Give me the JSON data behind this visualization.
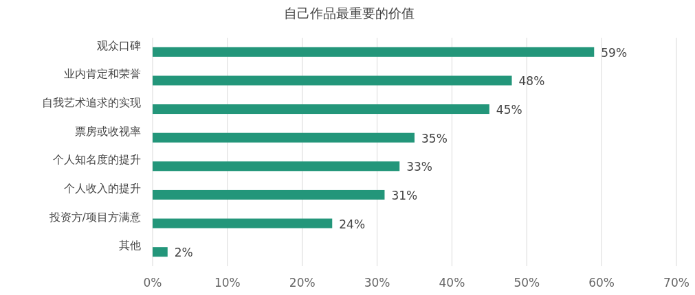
{
  "chart_data": {
    "type": "bar",
    "orientation": "horizontal",
    "title": "自己作品最重要的价值",
    "categories": [
      "观众口碑",
      "业内肯定和荣誉",
      "自我艺术追求的实现",
      "票房或收视率",
      "个人知名度的提升",
      "个人收入的提升",
      "投资方/项目方满意",
      "其他"
    ],
    "values": [
      59,
      48,
      45,
      35,
      33,
      31,
      24,
      2
    ],
    "value_labels": [
      "59%",
      "48%",
      "45%",
      "35%",
      "33%",
      "31%",
      "24%",
      "2%"
    ],
    "color": "#23967a",
    "xlim": [
      0,
      70
    ],
    "xticks": [
      {
        "value": 0,
        "label": "0%"
      },
      {
        "value": 10,
        "label": "10%"
      },
      {
        "value": 20,
        "label": "20%"
      },
      {
        "value": 30,
        "label": "30%"
      },
      {
        "value": 40,
        "label": "40%"
      },
      {
        "value": 50,
        "label": "50%"
      },
      {
        "value": 60,
        "label": "60%"
      },
      {
        "value": 70,
        "label": "70%"
      }
    ],
    "grid": "x"
  }
}
